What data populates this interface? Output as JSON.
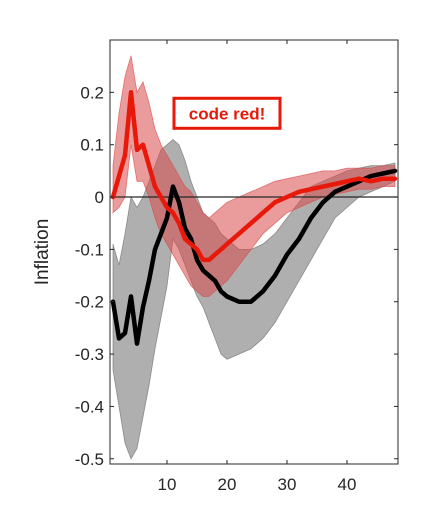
{
  "chart_data": {
    "type": "area",
    "title": "",
    "xlabel": "",
    "ylabel": "Inflation",
    "xlim": [
      0.5,
      48.5
    ],
    "ylim": [
      -0.51,
      0.3
    ],
    "xticks": [
      10,
      20,
      30,
      40
    ],
    "yticks": [
      0.2,
      0.1,
      0,
      -0.1,
      -0.2,
      -0.3,
      -0.4,
      -0.5
    ],
    "ytick_labels": [
      "0.2",
      "0.1",
      "0",
      "-0.1",
      "-0.2",
      "-0.3",
      "-0.4",
      "-0.5"
    ],
    "xtick_labels": [
      "10",
      "20",
      "30",
      "40"
    ],
    "zero_line": true,
    "grid": false,
    "annotation": {
      "text": "code red!",
      "x": 20,
      "y": 0.16,
      "color": "#e8190a"
    },
    "series": [
      {
        "color": "#000000",
        "band_color": "#6e6e6e",
        "x": [
          1,
          2,
          3,
          4,
          5,
          6,
          7,
          8,
          9,
          10,
          11,
          12,
          13,
          14,
          15,
          16,
          17,
          18,
          19,
          20,
          22,
          24,
          26,
          28,
          30,
          32,
          34,
          36,
          38,
          40,
          42,
          44,
          46,
          48
        ],
        "y": [
          -0.2,
          -0.27,
          -0.26,
          -0.19,
          -0.28,
          -0.21,
          -0.16,
          -0.1,
          -0.07,
          -0.04,
          0.02,
          -0.01,
          -0.06,
          -0.08,
          -0.12,
          -0.14,
          -0.15,
          -0.16,
          -0.18,
          -0.19,
          -0.2,
          -0.2,
          -0.18,
          -0.15,
          -0.11,
          -0.08,
          -0.04,
          -0.01,
          0.01,
          0.02,
          0.03,
          0.04,
          0.045,
          0.05
        ],
        "lower": [
          -0.33,
          -0.4,
          -0.47,
          -0.5,
          -0.48,
          -0.42,
          -0.36,
          -0.29,
          -0.23,
          -0.17,
          -0.08,
          -0.1,
          -0.13,
          -0.16,
          -0.19,
          -0.21,
          -0.24,
          -0.27,
          -0.3,
          -0.31,
          -0.3,
          -0.29,
          -0.27,
          -0.24,
          -0.2,
          -0.16,
          -0.12,
          -0.08,
          -0.04,
          -0.02,
          0,
          0.01,
          0.02,
          0.03
        ],
        "upper": [
          -0.09,
          -0.13,
          -0.07,
          0.0,
          -0.02,
          0.0,
          0.03,
          0.06,
          0.09,
          0.1,
          0.11,
          0.1,
          0.07,
          0.03,
          0.0,
          -0.03,
          -0.04,
          -0.05,
          -0.07,
          -0.08,
          -0.1,
          -0.1,
          -0.09,
          -0.07,
          -0.04,
          -0.01,
          0.02,
          0.03,
          0.04,
          0.05,
          0.055,
          0.06,
          0.06,
          0.065
        ]
      },
      {
        "color": "#e8190a",
        "band_color": "#d94a4a",
        "x": [
          1,
          2,
          3,
          4,
          5,
          6,
          7,
          8,
          9,
          10,
          11,
          12,
          13,
          14,
          15,
          16,
          17,
          18,
          19,
          20,
          22,
          24,
          26,
          28,
          30,
          32,
          34,
          36,
          38,
          40,
          42,
          44,
          46,
          48
        ],
        "y": [
          0.0,
          0.04,
          0.08,
          0.2,
          0.09,
          0.1,
          0.06,
          0.02,
          0.0,
          -0.02,
          -0.03,
          -0.05,
          -0.08,
          -0.09,
          -0.1,
          -0.12,
          -0.12,
          -0.11,
          -0.1,
          -0.09,
          -0.07,
          -0.05,
          -0.03,
          -0.01,
          0.0,
          0.01,
          0.015,
          0.02,
          0.025,
          0.03,
          0.035,
          0.03,
          0.035,
          0.035
        ],
        "lower": [
          -0.03,
          -0.02,
          0.0,
          0.1,
          0.03,
          0.03,
          0.0,
          -0.04,
          -0.07,
          -0.09,
          -0.11,
          -0.13,
          -0.15,
          -0.17,
          -0.18,
          -0.19,
          -0.19,
          -0.18,
          -0.17,
          -0.16,
          -0.13,
          -0.1,
          -0.07,
          -0.05,
          -0.03,
          -0.02,
          -0.01,
          0.0,
          0.005,
          0.01,
          0.015,
          0.015,
          0.02,
          0.02
        ],
        "upper": [
          0.06,
          0.16,
          0.23,
          0.27,
          0.2,
          0.22,
          0.18,
          0.13,
          0.1,
          0.08,
          0.06,
          0.04,
          0.02,
          0.01,
          -0.01,
          -0.03,
          -0.04,
          -0.03,
          -0.02,
          -0.01,
          0.0,
          0.01,
          0.02,
          0.03,
          0.035,
          0.04,
          0.045,
          0.05,
          0.05,
          0.055,
          0.055,
          0.055,
          0.06,
          0.06
        ]
      }
    ]
  }
}
